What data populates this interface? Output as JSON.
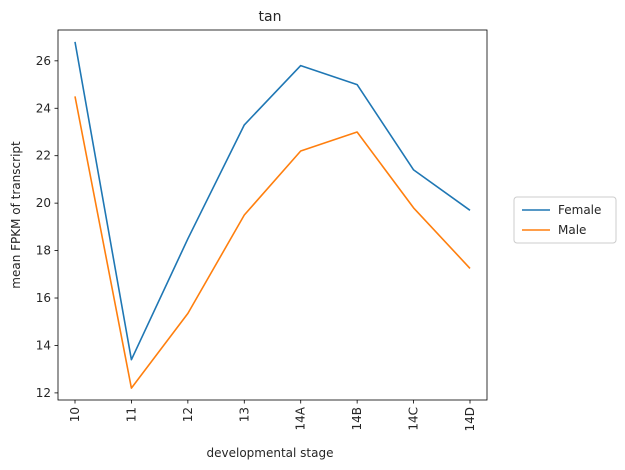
{
  "chart_data": {
    "type": "line",
    "title": "tan",
    "xlabel": "developmental stage",
    "ylabel": "mean FPKM of transcript",
    "categories": [
      "10",
      "11",
      "12",
      "13",
      "14A",
      "14B",
      "14C",
      "14D"
    ],
    "ylim": [
      11.7,
      27.3
    ],
    "yticks": [
      12,
      14,
      16,
      18,
      20,
      22,
      24,
      26
    ],
    "grid": false,
    "legend_position": "right",
    "series": [
      {
        "name": "Female",
        "color": "#1f77b4",
        "values": [
          26.8,
          13.4,
          18.5,
          23.3,
          25.8,
          25.0,
          21.4,
          19.7
        ]
      },
      {
        "name": "Male",
        "color": "#ff7f0e",
        "values": [
          24.5,
          12.2,
          15.35,
          19.5,
          22.2,
          23.0,
          19.8,
          17.25
        ]
      }
    ]
  }
}
